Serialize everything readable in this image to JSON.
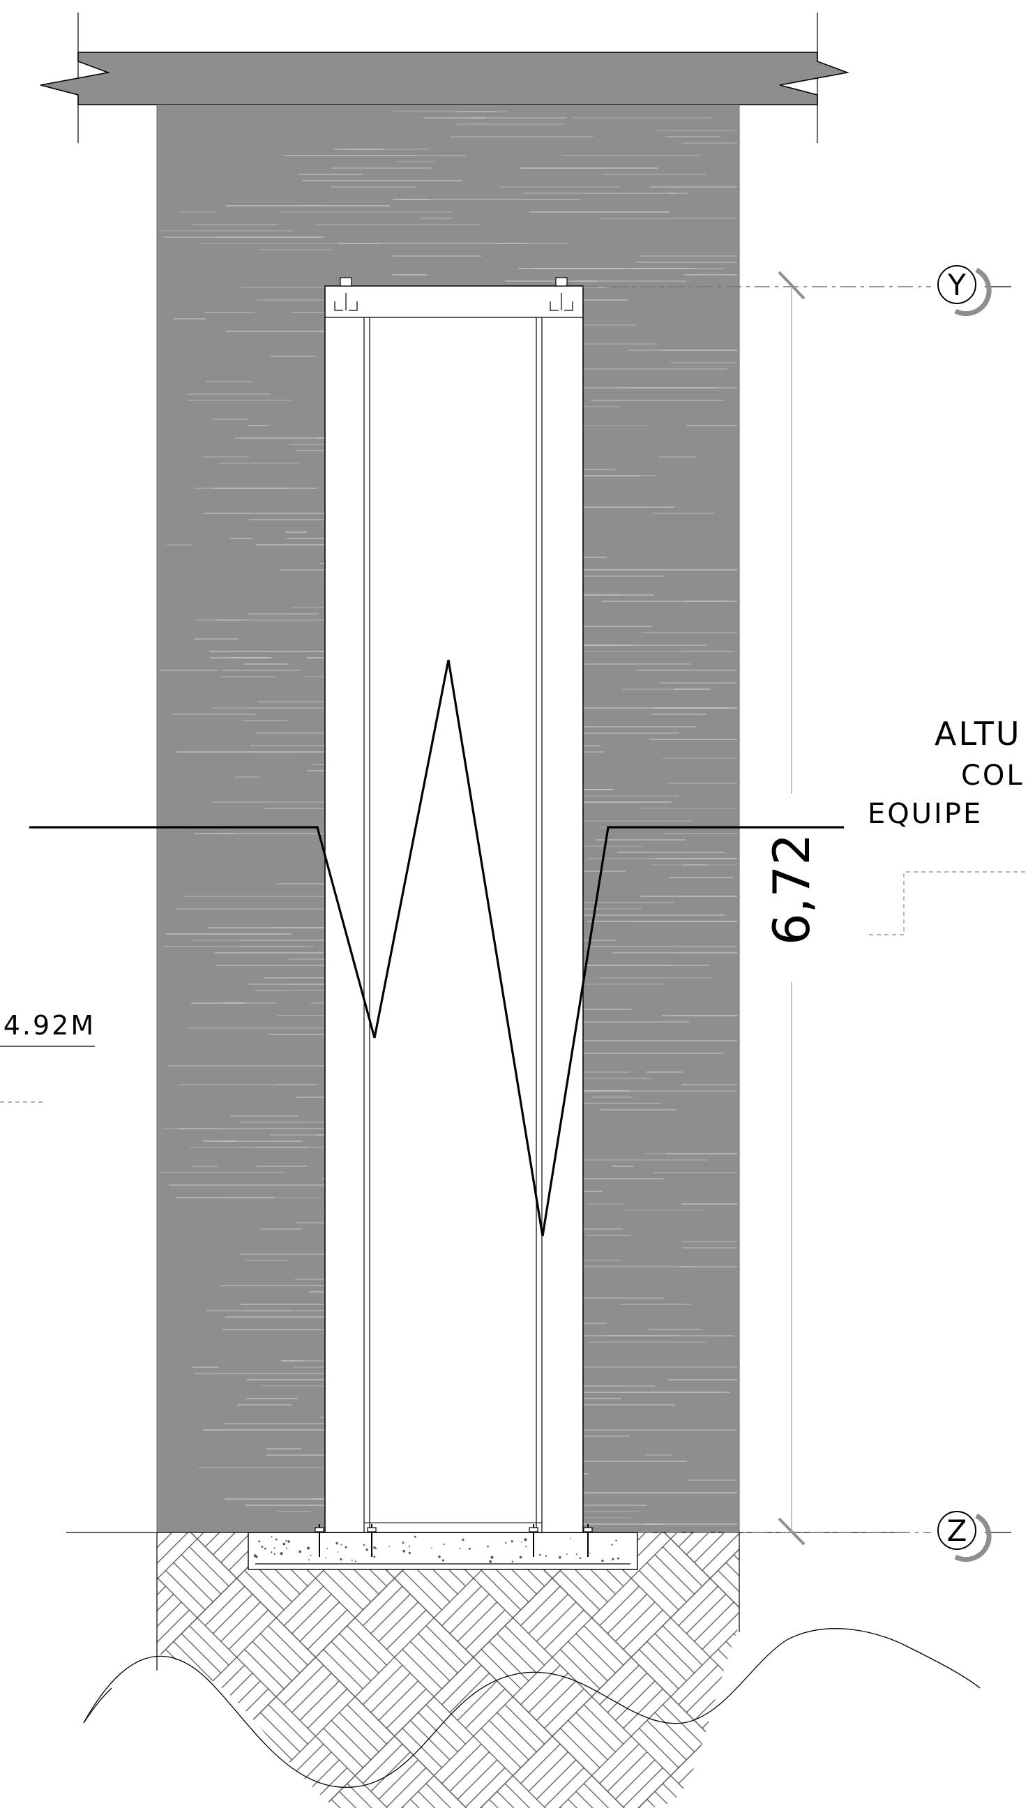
{
  "grid_markers": {
    "top": "Y",
    "bottom": "Z"
  },
  "dimension": {
    "value": "6,72"
  },
  "level": {
    "text": "-4.92m"
  },
  "annotation": {
    "line1": "Altu",
    "line2": "col",
    "line3": "equipe"
  },
  "colors": {
    "wall": "#8d8e90",
    "wall_streak": "#c8c9cb",
    "line": "#000000",
    "leader": "#9a9a9a",
    "background": "#ffffff"
  }
}
